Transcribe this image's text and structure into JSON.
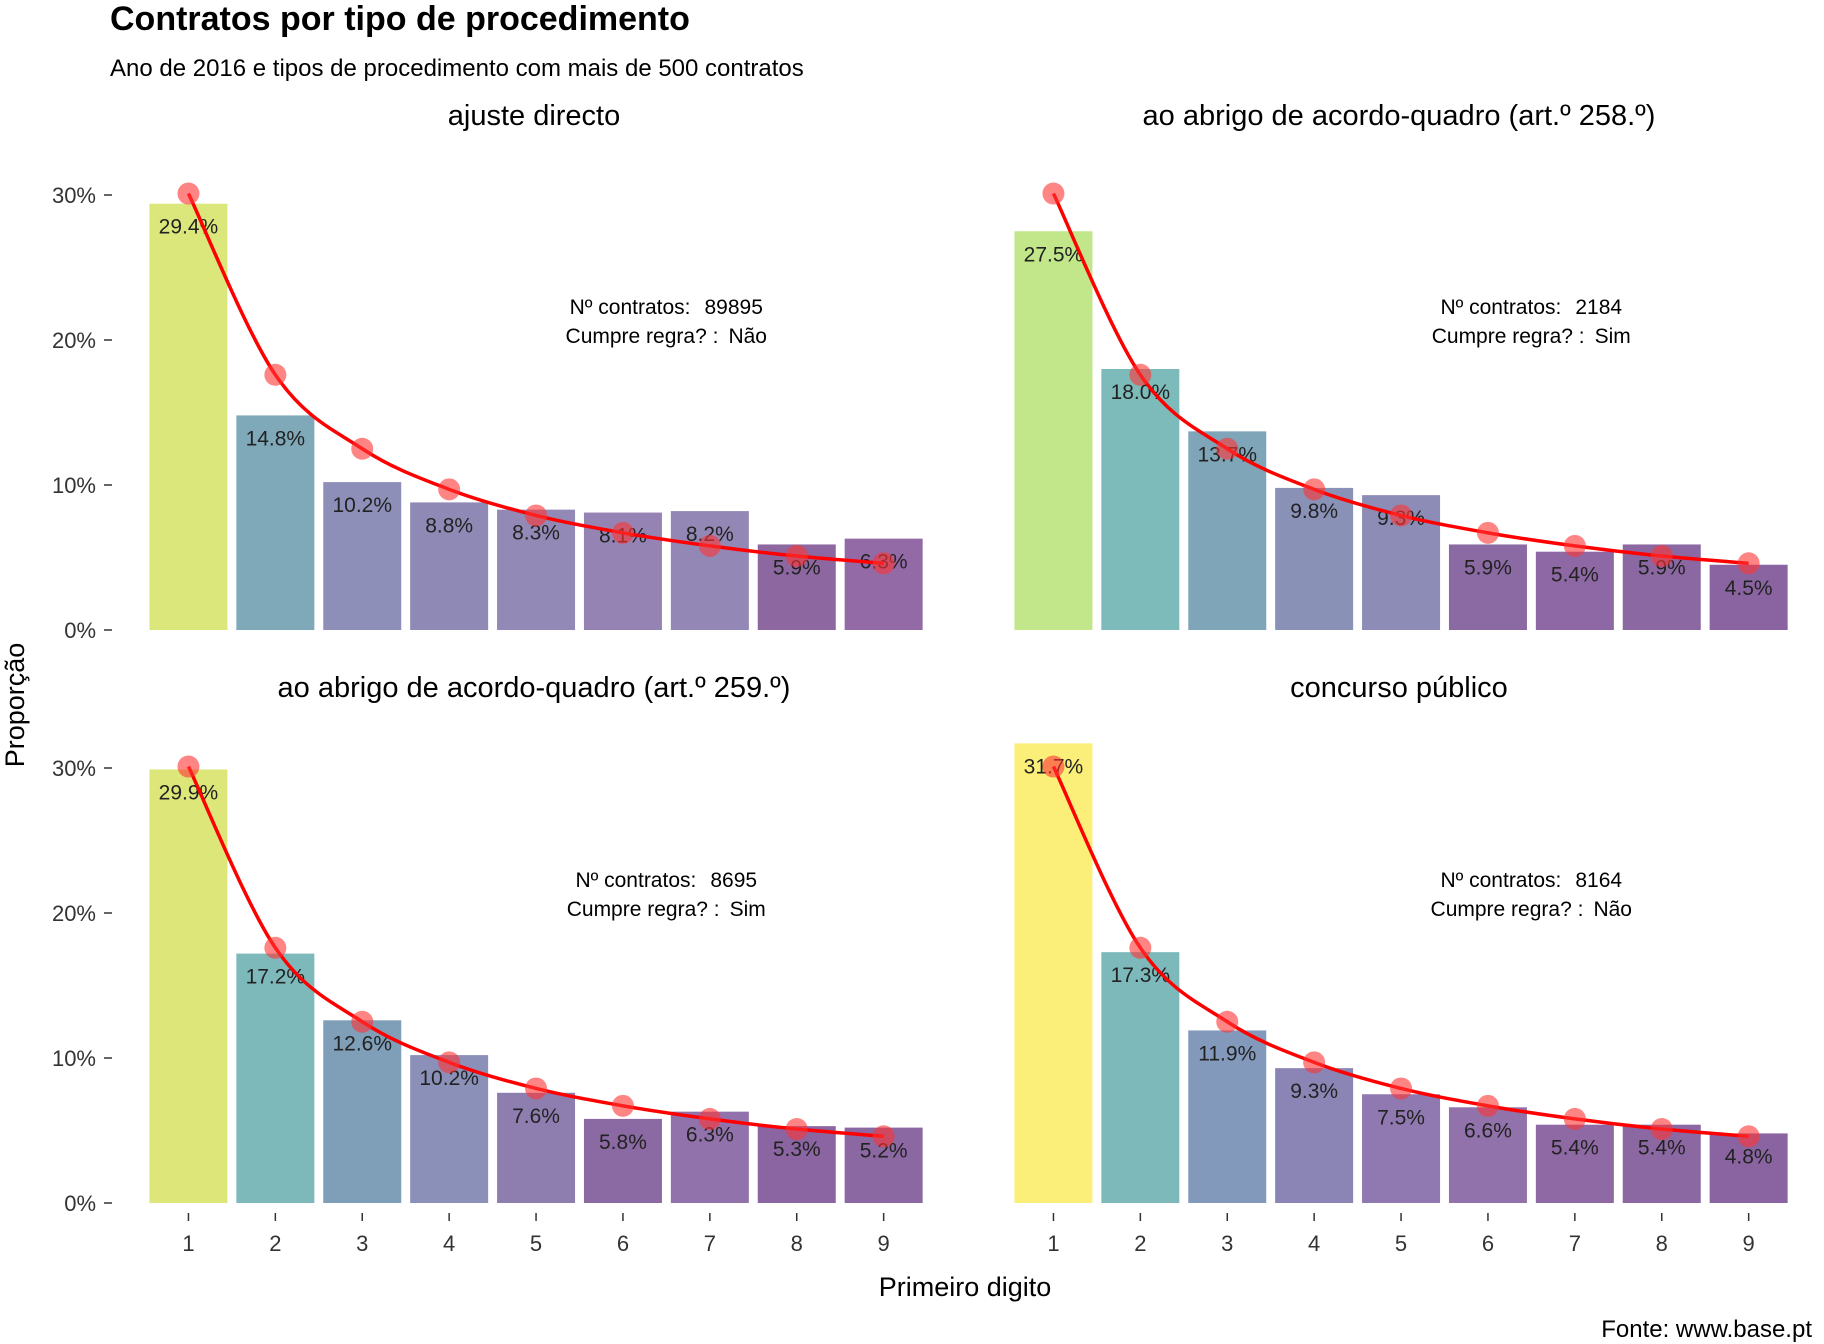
{
  "title": "Contratos por tipo de procedimento",
  "subtitle": "Ano de 2016 e tipos de procedimento com mais de 500 contratos",
  "xlabel": "Primeiro digito",
  "ylabel": "Proporção",
  "caption": "Fonte: www.base.pt",
  "y_tick_labels": [
    "0%",
    "10%",
    "20%",
    "30%"
  ],
  "colors": {
    "benford_line": "#ff0000",
    "benford_point": "#ff3333"
  },
  "chart_data": [
    {
      "type": "bar",
      "facet_title": "ajuste directo",
      "categories": [
        "1",
        "2",
        "3",
        "4",
        "5",
        "6",
        "7",
        "8",
        "9"
      ],
      "values": [
        29.4,
        14.8,
        10.2,
        8.8,
        8.3,
        8.1,
        8.2,
        5.9,
        6.3
      ],
      "value_labels": [
        "29.4%",
        "14.8%",
        "10.2%",
        "8.8%",
        "8.3%",
        "8.1%",
        "8.2%",
        "5.9%",
        "6.3%"
      ],
      "bar_colors": [
        "#dbe77a",
        "#7fa8b9",
        "#8d8fb8",
        "#8f89b6",
        "#9289b6",
        "#9584b3",
        "#9387b5",
        "#8c67a0",
        "#9369a6"
      ],
      "benford": [
        30.1,
        17.6,
        12.5,
        9.7,
        7.9,
        6.7,
        5.8,
        5.1,
        4.6
      ],
      "ylim": [
        0,
        32
      ],
      "annotation": {
        "contracts_label": "Nº contratos:",
        "contracts_value": "89895",
        "rule_label": "Cumpre regra? :",
        "rule_value": "Não"
      }
    },
    {
      "type": "bar",
      "facet_title": "ao abrigo de acordo-quadro (art.º 258.º)",
      "categories": [
        "1",
        "2",
        "3",
        "4",
        "5",
        "6",
        "7",
        "8",
        "9"
      ],
      "values": [
        27.5,
        18.0,
        13.7,
        9.8,
        9.3,
        5.9,
        5.4,
        5.9,
        4.5
      ],
      "value_labels": [
        "27.5%",
        "18.0%",
        "13.7%",
        "9.8%",
        "9.3%",
        "5.9%",
        "5.4%",
        "5.9%",
        "4.5%"
      ],
      "bar_colors": [
        "#c1e78a",
        "#7dbbbb",
        "#7fa5b8",
        "#8a91b7",
        "#8d8cb6",
        "#8b69a2",
        "#8e68a4",
        "#8b68a2",
        "#8a64a0"
      ],
      "benford": [
        30.1,
        17.6,
        12.5,
        9.7,
        7.9,
        6.7,
        5.8,
        5.1,
        4.6
      ],
      "ylim": [
        0,
        32
      ],
      "annotation": {
        "contracts_label": "Nº contratos:",
        "contracts_value": "2184",
        "rule_label": "Cumpre regra? :",
        "rule_value": "Sim"
      }
    },
    {
      "type": "bar",
      "facet_title": "ao abrigo de acordo-quadro (art.º 259.º)",
      "categories": [
        "1",
        "2",
        "3",
        "4",
        "5",
        "6",
        "7",
        "8",
        "9"
      ],
      "values": [
        29.9,
        17.2,
        12.6,
        10.2,
        7.6,
        5.8,
        6.3,
        5.3,
        5.2
      ],
      "value_labels": [
        "29.9%",
        "17.2%",
        "12.6%",
        "10.2%",
        "7.6%",
        "5.8%",
        "6.3%",
        "5.3%",
        "5.2%"
      ],
      "bar_colors": [
        "#dde779",
        "#7db9bb",
        "#7f9eb8",
        "#8a90b7",
        "#8e7eb0",
        "#8b69a2",
        "#9172ab",
        "#8a65a1",
        "#8b68a2"
      ],
      "benford": [
        30.1,
        17.6,
        12.5,
        9.7,
        7.9,
        6.7,
        5.8,
        5.1,
        4.6
      ],
      "ylim": [
        0,
        32
      ],
      "annotation": {
        "contracts_label": "Nº contratos:",
        "contracts_value": "8695",
        "rule_label": "Cumpre regra? :",
        "rule_value": "Sim"
      }
    },
    {
      "type": "bar",
      "facet_title": "concurso público",
      "categories": [
        "1",
        "2",
        "3",
        "4",
        "5",
        "6",
        "7",
        "8",
        "9"
      ],
      "values": [
        31.7,
        17.3,
        11.9,
        9.3,
        7.5,
        6.6,
        5.4,
        5.4,
        4.8
      ],
      "value_labels": [
        "31.7%",
        "17.3%",
        "11.9%",
        "9.3%",
        "7.5%",
        "6.6%",
        "5.4%",
        "5.4%",
        "4.8%"
      ],
      "bar_colors": [
        "#fbef7a",
        "#7db9bb",
        "#8299bc",
        "#8a85b4",
        "#9078b0",
        "#9272ab",
        "#8e69a4",
        "#8b68a2",
        "#8a64a0"
      ],
      "benford": [
        30.1,
        17.6,
        12.5,
        9.7,
        7.9,
        6.7,
        5.8,
        5.1,
        4.6
      ],
      "ylim": [
        0,
        32
      ],
      "annotation": {
        "contracts_label": "Nº contratos:",
        "contracts_value": "8164",
        "rule_label": "Cumpre regra? :",
        "rule_value": "Não"
      }
    }
  ]
}
